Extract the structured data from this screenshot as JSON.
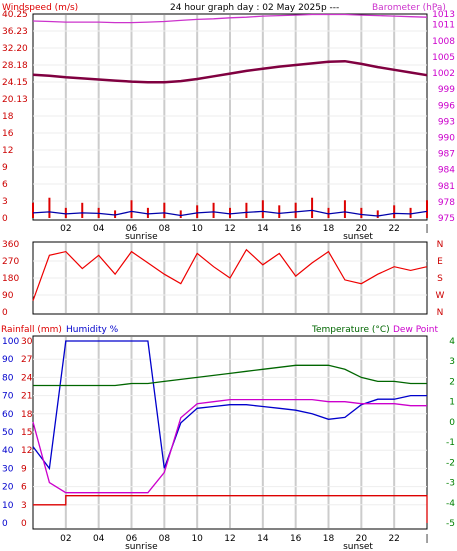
{
  "header": {
    "left": "Windspeed (m/s)",
    "center": "24 hour graph day : 02 May 2025p   ---",
    "right": "Barometer (hPa)"
  },
  "colors": {
    "wind": "#dd0000",
    "wind_avg": "#0000aa",
    "barometer": "#cc33cc",
    "bar_trend": "#800040",
    "direction": "#ee0000",
    "rain": "#dd0000",
    "humidity": "#0000cc",
    "temperature": "#006600",
    "dewpoint": "#cc00cc",
    "axis_blue": "#0000cc",
    "axis_red": "#cc0000",
    "axis_green": "#008000",
    "axis_magenta": "#cc00cc",
    "grid": "#cccccc"
  },
  "x_axis": {
    "ticks": [
      "02",
      "04",
      "06",
      "08",
      "10",
      "12",
      "14",
      "16",
      "18",
      "20",
      "22",
      "|"
    ],
    "sunrise_label": "sunrise",
    "sunset_label": "sunset"
  },
  "chart_data": [
    {
      "type": "line",
      "name_panel": "wind-barometer",
      "left_axis": {
        "label": "Windspeed (m/s)",
        "ticks": [
          "0",
          "3",
          "6",
          "9",
          "12",
          "16",
          "18",
          "20.13",
          "24.15",
          "28.18",
          "32.20",
          "36.23",
          "40.25"
        ],
        "range": [
          0,
          40.25
        ]
      },
      "right_axis": {
        "label": "Barometer (hPa)",
        "ticks": [
          "975",
          "976",
          "977",
          "978",
          "979",
          "980",
          "981",
          "982",
          "983",
          "984",
          "985",
          "986",
          "987",
          "988",
          "989",
          "990",
          "991",
          "992",
          "993",
          "994",
          "995",
          "996",
          "997",
          "998",
          "999",
          "1000",
          "1001",
          "1002",
          "1003",
          "1004",
          "1005",
          "1006",
          "1007",
          "1008",
          "1009",
          "1010",
          "1011",
          "1012",
          "1013"
        ],
        "range": [
          975,
          1013
        ]
      },
      "x_hours": [
        0,
        1,
        2,
        3,
        4,
        5,
        6,
        7,
        8,
        9,
        10,
        11,
        12,
        13,
        14,
        15,
        16,
        17,
        18,
        19,
        20,
        21,
        22,
        23,
        24
      ],
      "series": [
        {
          "name": "barometer",
          "values": [
            1011.7,
            1011.6,
            1011.5,
            1011.5,
            1011.5,
            1011.4,
            1011.4,
            1011.5,
            1011.6,
            1011.8,
            1012.0,
            1012.1,
            1012.3,
            1012.4,
            1012.6,
            1012.7,
            1012.8,
            1012.9,
            1012.9,
            1012.9,
            1012.8,
            1012.7,
            1012.6,
            1012.5,
            1012.4
          ]
        },
        {
          "name": "barometer-trend",
          "values": [
            1001.7,
            1001.5,
            1001.2,
            1001.0,
            1000.8,
            1000.6,
            1000.4,
            1000.3,
            1000.3,
            1000.5,
            1000.9,
            1001.4,
            1001.9,
            1002.4,
            1002.8,
            1003.2,
            1003.5,
            1003.8,
            1004.1,
            1004.2,
            1003.7,
            1003.1,
            1002.6,
            1002.1,
            1001.6
          ]
        },
        {
          "name": "wind-gust",
          "values": [
            3.0,
            4.0,
            2.0,
            3.0,
            2.0,
            1.5,
            3.5,
            2.0,
            3.0,
            1.5,
            2.5,
            3.0,
            2.0,
            3.0,
            3.5,
            2.5,
            3.0,
            4.0,
            2.0,
            3.5,
            2.0,
            1.5,
            2.5,
            2.0,
            3.5
          ]
        },
        {
          "name": "wind-average",
          "values": [
            1.0,
            1.2,
            0.8,
            1.0,
            0.9,
            0.6,
            1.3,
            0.8,
            1.0,
            0.5,
            1.0,
            1.2,
            0.8,
            1.1,
            1.3,
            0.9,
            1.2,
            1.5,
            0.8,
            1.2,
            0.7,
            0.4,
            0.9,
            0.8,
            1.3
          ]
        }
      ]
    },
    {
      "type": "line",
      "name_panel": "wind-direction",
      "left_axis": {
        "ticks": [
          "0",
          "90",
          "180",
          "270",
          "360"
        ],
        "range": [
          0,
          360
        ]
      },
      "right_axis": {
        "ticks": [
          "N",
          "W",
          "S",
          "E",
          "N"
        ]
      },
      "x_hours": [
        0,
        1,
        2,
        3,
        4,
        5,
        6,
        7,
        8,
        9,
        10,
        11,
        12,
        13,
        14,
        15,
        16,
        17,
        18,
        19,
        20,
        21,
        22,
        23,
        24
      ],
      "series": [
        {
          "name": "direction",
          "values": [
            60,
            300,
            320,
            230,
            300,
            200,
            320,
            260,
            200,
            150,
            310,
            240,
            180,
            330,
            250,
            310,
            190,
            260,
            320,
            170,
            150,
            200,
            240,
            220,
            240
          ]
        }
      ]
    },
    {
      "type": "line",
      "name_panel": "rain-humidity-temperature",
      "axes": {
        "rain": {
          "label": "Rainfall (mm)",
          "ticks": [
            "0",
            "3",
            "6",
            "9",
            "12",
            "15",
            "18",
            "21",
            "24",
            "27",
            "30"
          ],
          "range": [
            0,
            30
          ]
        },
        "humidity": {
          "label": "Humidity %",
          "ticks": [
            "0",
            "10",
            "20",
            "30",
            "40",
            "50",
            "60",
            "70",
            "80",
            "90",
            "100"
          ],
          "range": [
            0,
            100
          ]
        },
        "temperature": {
          "label": "Temperature (°C)",
          "ticks": [
            "-5",
            "-4",
            "-3",
            "-2",
            "-1",
            "0",
            "1",
            "2",
            "3",
            "4"
          ],
          "range": [
            -5,
            4
          ]
        },
        "dewpoint_label": "Dew Point"
      },
      "x_hours": [
        0,
        1,
        2,
        3,
        4,
        5,
        6,
        7,
        8,
        9,
        10,
        11,
        12,
        13,
        14,
        15,
        16,
        17,
        18,
        19,
        20,
        21,
        22,
        23,
        24
      ],
      "series": [
        {
          "name": "humidity",
          "values": [
            42,
            30,
            100,
            100,
            100,
            100,
            100,
            100,
            30,
            55,
            63,
            64,
            65,
            65,
            64,
            63,
            62,
            60,
            57,
            58,
            65,
            68,
            68,
            70,
            70
          ]
        },
        {
          "name": "temperature",
          "values": [
            1.8,
            1.8,
            1.8,
            1.8,
            1.8,
            1.8,
            1.9,
            1.9,
            2.0,
            2.1,
            2.2,
            2.3,
            2.4,
            2.5,
            2.6,
            2.7,
            2.8,
            2.8,
            2.8,
            2.6,
            2.2,
            2.0,
            2.0,
            1.9,
            1.9
          ]
        },
        {
          "name": "dewpoint",
          "values": [
            0.0,
            -3.0,
            -3.5,
            -3.5,
            -3.5,
            -3.5,
            -3.5,
            -3.5,
            -2.5,
            0.2,
            0.9,
            1.0,
            1.1,
            1.1,
            1.1,
            1.1,
            1.1,
            1.1,
            1.0,
            1.0,
            0.9,
            0.9,
            0.9,
            0.8,
            0.8
          ]
        },
        {
          "name": "rainfall",
          "values": [
            3.0,
            3.0,
            4.5,
            4.5,
            4.5,
            4.5,
            4.5,
            4.5,
            4.5,
            4.5,
            4.5,
            4.5,
            4.5,
            4.5,
            4.5,
            4.5,
            4.5,
            4.5,
            4.5,
            4.5,
            4.5,
            4.5,
            4.5,
            4.5,
            0
          ]
        }
      ]
    }
  ]
}
